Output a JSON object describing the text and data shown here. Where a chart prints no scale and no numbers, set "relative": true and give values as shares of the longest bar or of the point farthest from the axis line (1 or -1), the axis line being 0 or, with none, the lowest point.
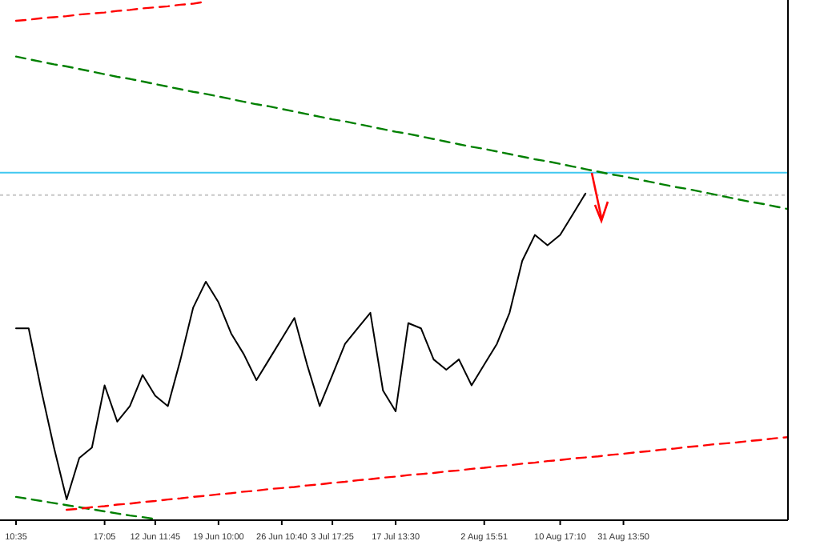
{
  "chart_data": {
    "type": "line",
    "relative": true,
    "categories": [
      "10:35",
      null,
      null,
      null,
      null,
      null,
      null,
      "17:05",
      null,
      null,
      null,
      "12 Jun 11:45",
      null,
      null,
      null,
      null,
      "19 Jun 10:00",
      null,
      null,
      null,
      null,
      "26 Jun 10:40",
      null,
      null,
      null,
      "3 Jul 17:25",
      null,
      null,
      null,
      null,
      "17 Jul 13:30",
      null,
      null,
      null,
      null,
      null,
      null,
      "2 Aug 15:51",
      null,
      null,
      null,
      null,
      null,
      "10 Aug 17:10",
      null,
      null,
      null,
      null,
      "31 Aug 13:50",
      null,
      null,
      null,
      null,
      null,
      null,
      null,
      null,
      null,
      null,
      null,
      null,
      null
    ],
    "grid": false,
    "marker": "none",
    "ref_lines": [
      {
        "axis": "y",
        "value": 0.67,
        "color": "#40c8f0",
        "line_style": "solid"
      },
      {
        "axis": "y",
        "value": 0.627,
        "color": "#c8c8c8",
        "line_style": "dotted"
      }
    ],
    "series": [
      {
        "color": "#000000",
        "line_style": "solid",
        "values": [
          0.37,
          0.37,
          0.25,
          0.14,
          0.04,
          0.12,
          0.14,
          0.26,
          0.19,
          0.22,
          0.28,
          0.24,
          0.22,
          0.31,
          0.41,
          0.46,
          0.42,
          0.36,
          0.32,
          0.27,
          0.31,
          0.35,
          0.39,
          0.3,
          0.22,
          0.28,
          0.34,
          0.37,
          0.4,
          0.25,
          0.21,
          0.38,
          0.37,
          0.31,
          0.29,
          0.31,
          0.26,
          0.3,
          0.34,
          0.4,
          0.5,
          0.55,
          0.53,
          0.55,
          0.59,
          0.63,
          null,
          null,
          null,
          null,
          null,
          null,
          null,
          null,
          null,
          null,
          null,
          null,
          null,
          null,
          null,
          null
        ]
      },
      {
        "color": "#008000",
        "line_style": "dashed",
        "values": [
          0.894,
          0.889,
          0.884,
          0.879,
          0.875,
          0.87,
          0.865,
          0.86,
          0.855,
          0.851,
          0.846,
          0.841,
          0.836,
          0.831,
          0.826,
          0.822,
          0.817,
          0.812,
          0.807,
          0.802,
          0.798,
          0.793,
          0.788,
          0.783,
          0.778,
          0.773,
          0.769,
          0.764,
          0.759,
          0.754,
          0.749,
          0.745,
          0.74,
          0.735,
          0.73,
          0.725,
          0.72,
          0.716,
          0.711,
          0.706,
          0.701,
          0.696,
          0.692,
          0.687,
          0.682,
          0.677,
          0.672,
          0.667,
          0.663,
          0.658,
          0.653,
          0.648,
          0.643,
          0.639,
          0.634,
          0.629,
          0.624,
          0.619,
          0.614,
          0.61,
          0.605,
          0.6
        ]
      },
      {
        "color": "#008000",
        "line_style": "dashed",
        "values": [
          0.045,
          0.041,
          0.037,
          0.033,
          0.029,
          0.025,
          0.021,
          0.017,
          0.013,
          0.009,
          0.006,
          0.002,
          null,
          null,
          null,
          null,
          null,
          null,
          null,
          null,
          null,
          null,
          null,
          null,
          null,
          null,
          null,
          null,
          null,
          null,
          null,
          null,
          null,
          null,
          null,
          null,
          null,
          null,
          null,
          null,
          null,
          null,
          null,
          null,
          null,
          null,
          null,
          null,
          null,
          null,
          null,
          null,
          null,
          null,
          null,
          null,
          null,
          null,
          null,
          null,
          null,
          null
        ]
      },
      {
        "color": "#ff0000",
        "line_style": "dashed",
        "values": [
          null,
          null,
          null,
          null,
          0.02,
          0.022,
          0.025,
          0.027,
          0.03,
          0.032,
          0.035,
          0.037,
          0.04,
          0.042,
          0.045,
          0.047,
          0.05,
          0.052,
          0.055,
          0.057,
          0.06,
          0.062,
          0.064,
          0.067,
          0.069,
          0.072,
          0.074,
          0.077,
          0.079,
          0.082,
          0.084,
          0.087,
          0.089,
          0.091,
          0.094,
          0.096,
          0.099,
          0.101,
          0.104,
          0.106,
          0.109,
          0.111,
          0.114,
          0.116,
          0.119,
          0.121,
          0.123,
          0.126,
          0.128,
          0.131,
          0.133,
          0.136,
          0.138,
          0.141,
          0.143,
          0.146,
          0.148,
          0.15,
          0.153,
          0.155,
          0.158,
          0.16
        ]
      },
      {
        "color": "#ff0000",
        "line_style": "dashed",
        "values": [
          0.963,
          0.965,
          0.968,
          0.97,
          0.972,
          0.975,
          0.977,
          0.979,
          0.982,
          0.984,
          0.987,
          0.989,
          0.991,
          0.994,
          0.996,
          1.0,
          null,
          null,
          null,
          null,
          null,
          null,
          null,
          null,
          null,
          null,
          null,
          null,
          null,
          null,
          null,
          null,
          null,
          null,
          null,
          null,
          null,
          null,
          null,
          null,
          null,
          null,
          null,
          null,
          null,
          null,
          null,
          null,
          null,
          null,
          null,
          null,
          null,
          null,
          null,
          null,
          null,
          null,
          null,
          null,
          null,
          null
        ]
      }
    ]
  }
}
